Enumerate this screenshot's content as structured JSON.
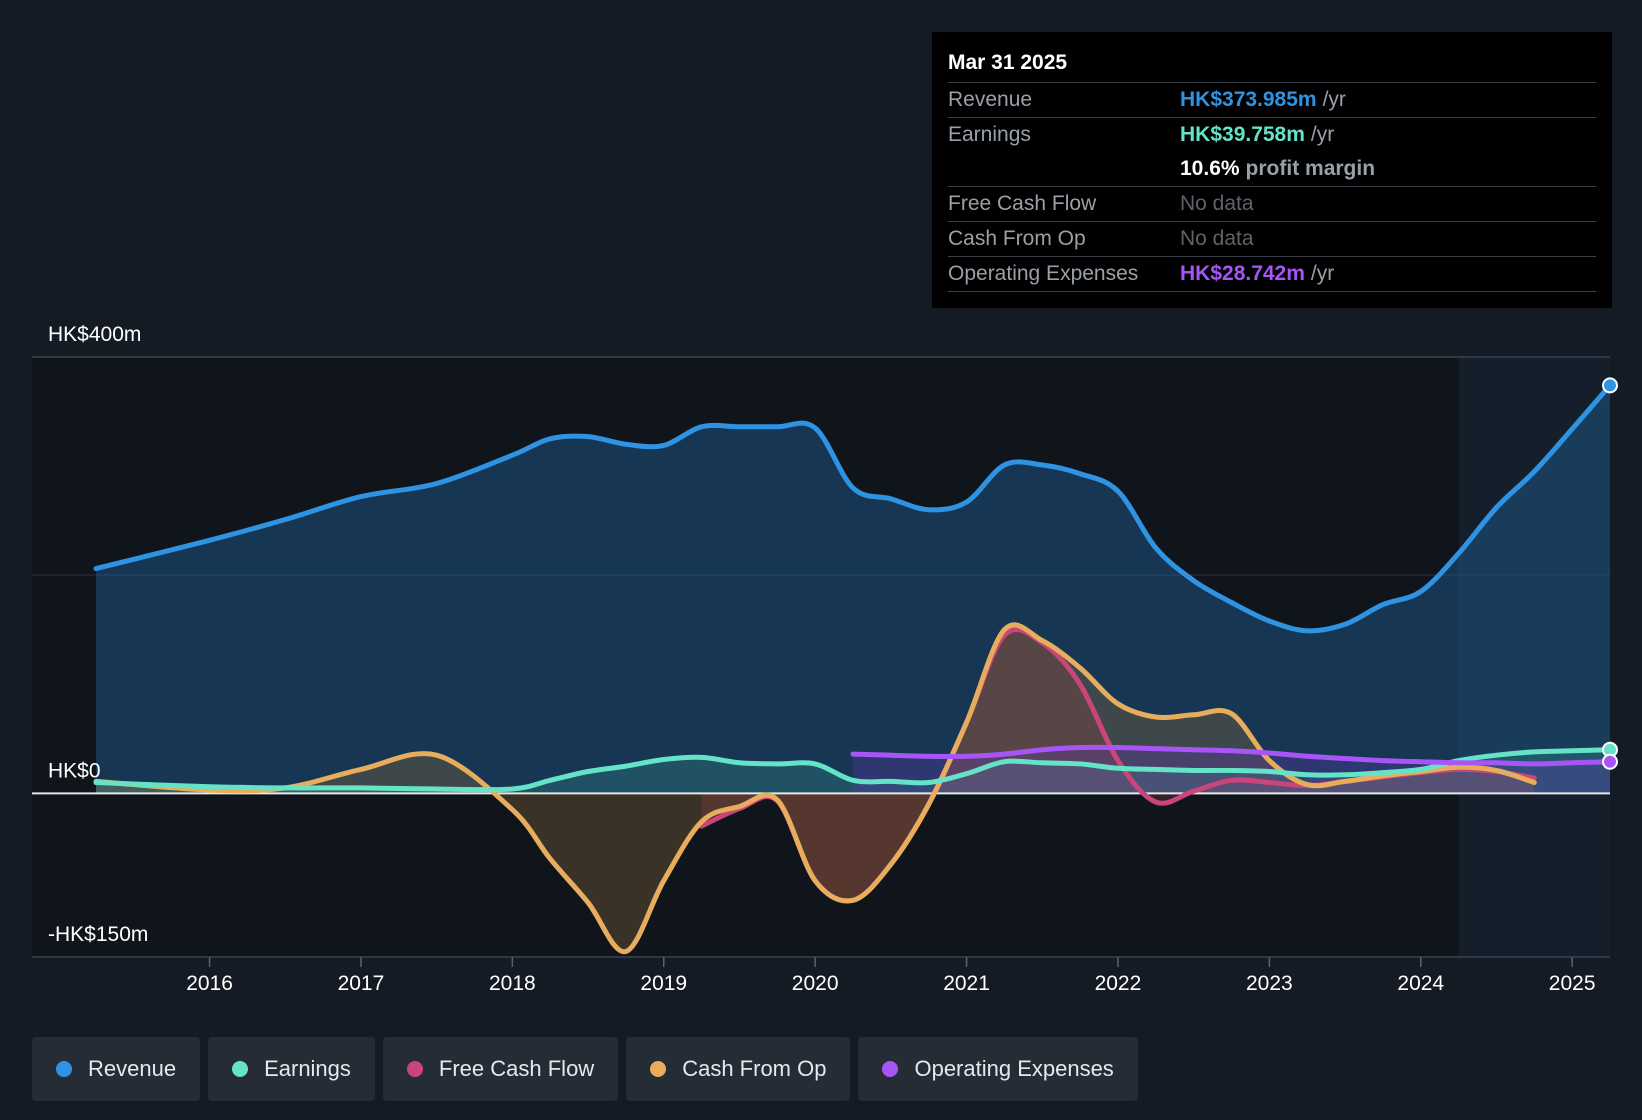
{
  "tooltip": {
    "date": "Mar 31 2025",
    "rows": [
      {
        "label": "Revenue",
        "value": "HK$373.985m",
        "unit": "/yr",
        "color": "#2e93e3"
      },
      {
        "label": "Earnings",
        "value": "HK$39.758m",
        "unit": "/yr",
        "color": "#64e3c9"
      },
      {
        "label": "",
        "value": "10.6%",
        "unit": "profit margin",
        "color": "#ffffff"
      },
      {
        "label": "Free Cash Flow",
        "value": "No data"
      },
      {
        "label": "Cash From Op",
        "value": "No data"
      },
      {
        "label": "Operating Expenses",
        "value": "HK$28.742m",
        "unit": "/yr",
        "color": "#a855f7"
      }
    ]
  },
  "legend": [
    {
      "label": "Revenue",
      "color": "#2e93e3"
    },
    {
      "label": "Earnings",
      "color": "#64e3c9"
    },
    {
      "label": "Free Cash Flow",
      "color": "#c9457a"
    },
    {
      "label": "Cash From Op",
      "color": "#e8ad5c"
    },
    {
      "label": "Operating Expenses",
      "color": "#a855f7"
    }
  ],
  "chart_data": {
    "type": "line",
    "title": "",
    "y_unit": "HK$m",
    "ylim": [
      -150,
      400
    ],
    "xlim": [
      2015.25,
      2025.25
    ],
    "y_tick_labels": [
      {
        "value": 400,
        "label": "HK$400m"
      },
      {
        "value": 0,
        "label": "HK$0"
      },
      {
        "value": -150,
        "label": "-HK$150m"
      }
    ],
    "x_ticks": [
      2016,
      2017,
      2018,
      2019,
      2020,
      2021,
      2022,
      2023,
      2024,
      2025
    ],
    "forecast_start": 2024.25,
    "series": [
      {
        "name": "Revenue",
        "color": "#2e93e3",
        "points": [
          [
            2015.25,
            206
          ],
          [
            2016,
            232
          ],
          [
            2016.5,
            251
          ],
          [
            2017,
            272
          ],
          [
            2017.5,
            284
          ],
          [
            2018,
            310
          ],
          [
            2018.25,
            325
          ],
          [
            2018.5,
            327
          ],
          [
            2018.75,
            320
          ],
          [
            2019,
            319
          ],
          [
            2019.25,
            336
          ],
          [
            2019.5,
            336
          ],
          [
            2019.75,
            336
          ],
          [
            2020,
            335
          ],
          [
            2020.25,
            280
          ],
          [
            2020.5,
            270
          ],
          [
            2020.75,
            260
          ],
          [
            2021,
            267
          ],
          [
            2021.25,
            301
          ],
          [
            2021.5,
            301
          ],
          [
            2021.75,
            293
          ],
          [
            2022,
            277
          ],
          [
            2022.25,
            225
          ],
          [
            2022.5,
            195
          ],
          [
            2022.75,
            175
          ],
          [
            2023,
            158
          ],
          [
            2023.25,
            149
          ],
          [
            2023.5,
            155
          ],
          [
            2023.75,
            173
          ],
          [
            2024,
            185
          ],
          [
            2024.25,
            220
          ],
          [
            2024.5,
            262
          ],
          [
            2024.75,
            295
          ],
          [
            2025,
            334
          ],
          [
            2025.25,
            374
          ]
        ]
      },
      {
        "name": "Earnings",
        "color": "#64e3c9",
        "points": [
          [
            2015.25,
            10
          ],
          [
            2016,
            6
          ],
          [
            2016.5,
            5
          ],
          [
            2017,
            5
          ],
          [
            2017.5,
            4
          ],
          [
            2018,
            4
          ],
          [
            2018.25,
            12
          ],
          [
            2018.5,
            20
          ],
          [
            2018.75,
            25
          ],
          [
            2019,
            31
          ],
          [
            2019.25,
            33
          ],
          [
            2019.5,
            28
          ],
          [
            2019.75,
            27
          ],
          [
            2020,
            27
          ],
          [
            2020.25,
            12
          ],
          [
            2020.5,
            11
          ],
          [
            2020.75,
            10
          ],
          [
            2021,
            18
          ],
          [
            2021.25,
            29
          ],
          [
            2021.5,
            28
          ],
          [
            2021.75,
            27
          ],
          [
            2022,
            23
          ],
          [
            2022.25,
            22
          ],
          [
            2022.5,
            21
          ],
          [
            2022.75,
            21
          ],
          [
            2023,
            20
          ],
          [
            2023.25,
            17
          ],
          [
            2023.5,
            17
          ],
          [
            2023.75,
            19
          ],
          [
            2024,
            22
          ],
          [
            2024.25,
            30
          ],
          [
            2024.5,
            35
          ],
          [
            2024.75,
            38
          ],
          [
            2025,
            39
          ],
          [
            2025.25,
            40
          ]
        ]
      },
      {
        "name": "Free Cash Flow",
        "color": "#c9457a",
        "points": [
          [
            2019.25,
            -30
          ],
          [
            2019.5,
            -14
          ],
          [
            2019.75,
            -7
          ],
          [
            2020,
            -80
          ],
          [
            2020.25,
            -98
          ],
          [
            2020.5,
            -65
          ],
          [
            2020.75,
            -10
          ],
          [
            2021,
            65
          ],
          [
            2021.25,
            145
          ],
          [
            2021.5,
            138
          ],
          [
            2021.75,
            100
          ],
          [
            2022,
            30
          ],
          [
            2022.25,
            -8
          ],
          [
            2022.5,
            2
          ],
          [
            2022.75,
            12
          ],
          [
            2023,
            10
          ],
          [
            2023.25,
            7
          ],
          [
            2023.5,
            11
          ],
          [
            2023.75,
            15
          ],
          [
            2024,
            19
          ],
          [
            2024.25,
            22
          ],
          [
            2024.5,
            20
          ],
          [
            2024.75,
            14
          ]
        ]
      },
      {
        "name": "Cash From Op",
        "color": "#e8ad5c",
        "points": [
          [
            2015.25,
            11
          ],
          [
            2016,
            3
          ],
          [
            2016.5,
            5
          ],
          [
            2017,
            22
          ],
          [
            2017.5,
            35
          ],
          [
            2018,
            -15
          ],
          [
            2018.25,
            -60
          ],
          [
            2018.5,
            -100
          ],
          [
            2018.75,
            -145
          ],
          [
            2019,
            -80
          ],
          [
            2019.25,
            -26
          ],
          [
            2019.5,
            -12
          ],
          [
            2019.75,
            -6
          ],
          [
            2020,
            -80
          ],
          [
            2020.25,
            -98
          ],
          [
            2020.5,
            -65
          ],
          [
            2020.75,
            -10
          ],
          [
            2021,
            65
          ],
          [
            2021.25,
            150
          ],
          [
            2021.5,
            140
          ],
          [
            2021.75,
            115
          ],
          [
            2022,
            82
          ],
          [
            2022.25,
            70
          ],
          [
            2022.5,
            72
          ],
          [
            2022.75,
            73
          ],
          [
            2023,
            30
          ],
          [
            2023.25,
            8
          ],
          [
            2023.5,
            11
          ],
          [
            2023.75,
            16
          ],
          [
            2024,
            20
          ],
          [
            2024.25,
            24
          ],
          [
            2024.5,
            21
          ],
          [
            2024.75,
            10
          ]
        ]
      },
      {
        "name": "Operating Expenses",
        "color": "#a855f7",
        "points": [
          [
            2020.25,
            36
          ],
          [
            2020.5,
            35
          ],
          [
            2020.75,
            34
          ],
          [
            2021,
            34
          ],
          [
            2021.25,
            36
          ],
          [
            2021.5,
            40
          ],
          [
            2021.75,
            42
          ],
          [
            2022,
            42
          ],
          [
            2022.25,
            41
          ],
          [
            2022.5,
            40
          ],
          [
            2022.75,
            39
          ],
          [
            2023,
            37
          ],
          [
            2023.25,
            34
          ],
          [
            2023.5,
            32
          ],
          [
            2023.75,
            30
          ],
          [
            2024,
            29
          ],
          [
            2024.25,
            28
          ],
          [
            2024.5,
            28
          ],
          [
            2024.75,
            27
          ],
          [
            2025,
            28
          ],
          [
            2025.25,
            29
          ]
        ]
      }
    ]
  }
}
